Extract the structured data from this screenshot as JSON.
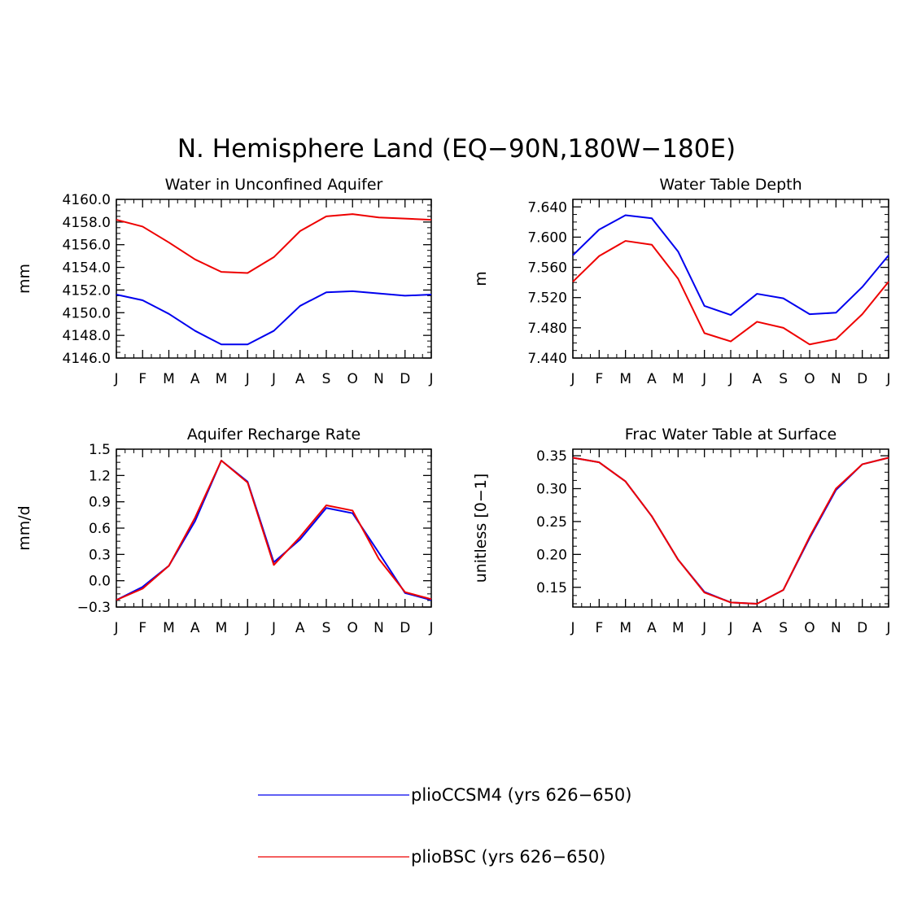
{
  "figure_title": "N. Hemisphere Land (EQ−90N,180W−180E)",
  "colors": {
    "pliocCSM4": "#0000ee",
    "plioBSC": "#ee0000",
    "axis": "#000000"
  },
  "legend": {
    "placement": "bottom-center",
    "items": [
      {
        "name": "plioCCSM4 (yrs 626−650)",
        "color": "#0000ee"
      },
      {
        "name": "plioBSC (yrs 626−650)",
        "color": "#ee0000"
      }
    ]
  },
  "chart_data": [
    {
      "type": "line",
      "title": "Water in Unconfined Aquifer",
      "ylabel": "mm",
      "xlabel": "",
      "categories": [
        "J",
        "F",
        "M",
        "A",
        "M",
        "J",
        "J",
        "A",
        "S",
        "O",
        "N",
        "D",
        "J"
      ],
      "ylim": [
        4146.0,
        4160.0
      ],
      "yticks": [
        4146.0,
        4148.0,
        4150.0,
        4152.0,
        4154.0,
        4156.0,
        4158.0,
        4160.0
      ],
      "ytick_labels": [
        "4146.0",
        "4148.0",
        "4150.0",
        "4152.0",
        "4154.0",
        "4156.0",
        "4158.0",
        "4160.0"
      ],
      "series": [
        {
          "name": "plioCCSM4 (yrs 626−650)",
          "color": "#0000ee",
          "values": [
            4151.6,
            4151.1,
            4149.9,
            4148.4,
            4147.2,
            4147.2,
            4148.4,
            4150.6,
            4151.8,
            4151.9,
            4151.7,
            4151.5,
            4151.6
          ]
        },
        {
          "name": "plioBSC (yrs 626−650)",
          "color": "#ee0000",
          "values": [
            4158.2,
            4157.6,
            4156.2,
            4154.7,
            4153.6,
            4153.5,
            4154.9,
            4157.2,
            4158.5,
            4158.7,
            4158.4,
            4158.3,
            4158.2
          ]
        }
      ]
    },
    {
      "type": "line",
      "title": "Water Table Depth",
      "ylabel": "m",
      "xlabel": "",
      "categories": [
        "J",
        "F",
        "M",
        "A",
        "M",
        "J",
        "J",
        "A",
        "S",
        "O",
        "N",
        "D",
        "J"
      ],
      "ylim": [
        7.44,
        7.65
      ],
      "yticks": [
        7.44,
        7.48,
        7.52,
        7.56,
        7.6,
        7.64
      ],
      "ytick_labels": [
        "7.440",
        "7.480",
        "7.520",
        "7.560",
        "7.600",
        "7.640"
      ],
      "series": [
        {
          "name": "plioCCSM4 (yrs 626−650)",
          "color": "#0000ee",
          "values": [
            7.576,
            7.61,
            7.629,
            7.625,
            7.581,
            7.509,
            7.497,
            7.525,
            7.519,
            7.498,
            7.5,
            7.534,
            7.576
          ]
        },
        {
          "name": "plioBSC (yrs 626−650)",
          "color": "#ee0000",
          "values": [
            7.541,
            7.575,
            7.595,
            7.59,
            7.545,
            7.473,
            7.462,
            7.488,
            7.48,
            7.458,
            7.465,
            7.498,
            7.541
          ]
        }
      ]
    },
    {
      "type": "line",
      "title": "Aquifer Recharge Rate",
      "ylabel": "mm/d",
      "xlabel": "",
      "categories": [
        "J",
        "F",
        "M",
        "A",
        "M",
        "J",
        "J",
        "A",
        "S",
        "O",
        "N",
        "D",
        "J"
      ],
      "ylim": [
        -0.3,
        1.5
      ],
      "yticks": [
        -0.3,
        0.0,
        0.3,
        0.6,
        0.9,
        1.2,
        1.5
      ],
      "ytick_labels": [
        "−0.3",
        "0.0",
        "0.3",
        "0.6",
        "0.9",
        "1.2",
        "1.5"
      ],
      "series": [
        {
          "name": "plioCCSM4 (yrs 626−650)",
          "color": "#0000ee",
          "values": [
            -0.22,
            -0.07,
            0.17,
            0.68,
            1.37,
            1.13,
            0.21,
            0.47,
            0.83,
            0.77,
            0.32,
            -0.14,
            -0.22
          ]
        },
        {
          "name": "plioBSC (yrs 626−650)",
          "color": "#ee0000",
          "values": [
            -0.22,
            -0.09,
            0.17,
            0.72,
            1.37,
            1.12,
            0.18,
            0.5,
            0.86,
            0.8,
            0.25,
            -0.13,
            -0.21
          ]
        }
      ]
    },
    {
      "type": "line",
      "title": "Frac Water Table at Surface",
      "ylabel": "unitless [0−1]",
      "xlabel": "",
      "categories": [
        "J",
        "F",
        "M",
        "A",
        "M",
        "J",
        "J",
        "A",
        "S",
        "O",
        "N",
        "D",
        "J"
      ],
      "ylim": [
        0.12,
        0.36
      ],
      "yticks": [
        0.15,
        0.2,
        0.25,
        0.3,
        0.35
      ],
      "ytick_labels": [
        "0.15",
        "0.20",
        "0.25",
        "0.30",
        "0.35"
      ],
      "series": [
        {
          "name": "plioCCSM4 (yrs 626−650)",
          "color": "#0000ee",
          "values": [
            0.347,
            0.34,
            0.311,
            0.258,
            0.192,
            0.143,
            0.127,
            0.125,
            0.146,
            0.225,
            0.298,
            0.337,
            0.347
          ]
        },
        {
          "name": "plioBSC (yrs 626−650)",
          "color": "#ee0000",
          "values": [
            0.347,
            0.34,
            0.311,
            0.258,
            0.192,
            0.142,
            0.127,
            0.125,
            0.146,
            0.227,
            0.3,
            0.337,
            0.347
          ]
        }
      ]
    }
  ]
}
